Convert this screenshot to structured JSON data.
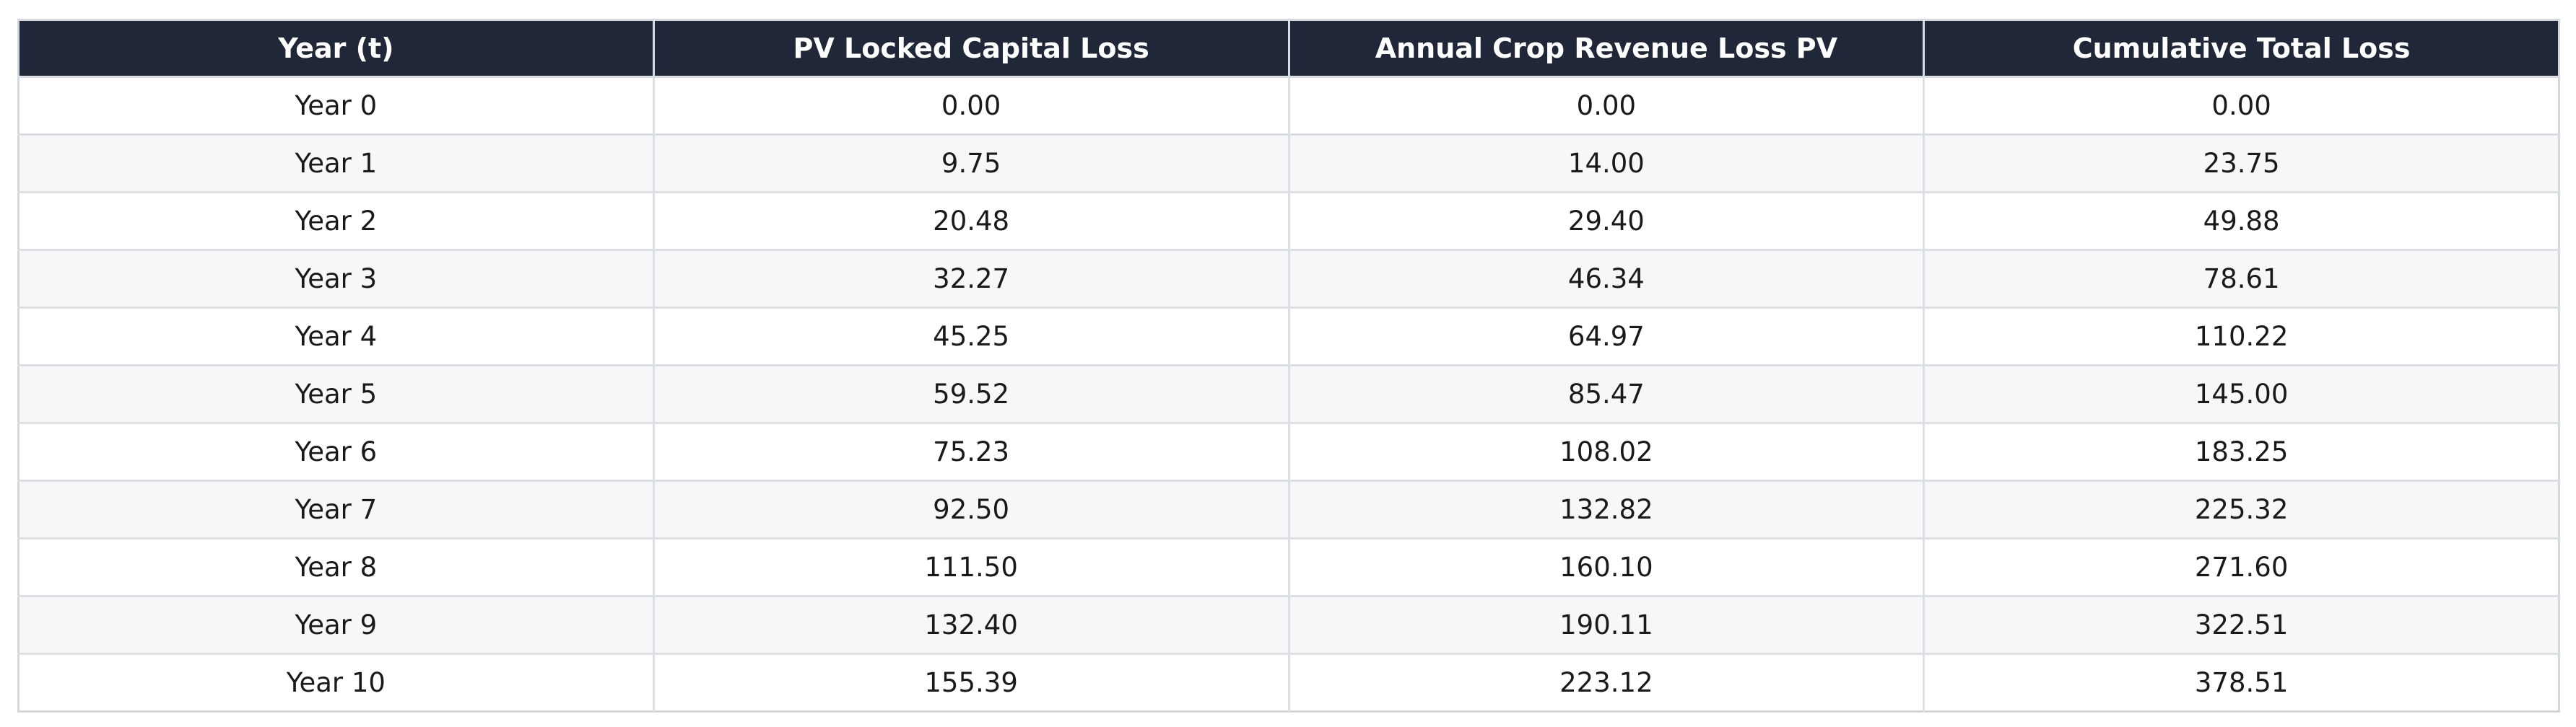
{
  "chart_data": {
    "type": "table",
    "columns": [
      "Year (t)",
      "PV Locked Capital Loss",
      "Annual Crop Revenue Loss PV",
      "Cumulative Total Loss"
    ],
    "rows": [
      [
        "Year 0",
        "0.00",
        "0.00",
        "0.00"
      ],
      [
        "Year 1",
        "9.75",
        "14.00",
        "23.75"
      ],
      [
        "Year 2",
        "20.48",
        "29.40",
        "49.88"
      ],
      [
        "Year 3",
        "32.27",
        "46.34",
        "78.61"
      ],
      [
        "Year 4",
        "45.25",
        "64.97",
        "110.22"
      ],
      [
        "Year 5",
        "59.52",
        "85.47",
        "145.00"
      ],
      [
        "Year 6",
        "75.23",
        "108.02",
        "183.25"
      ],
      [
        "Year 7",
        "92.50",
        "132.82",
        "225.32"
      ],
      [
        "Year 8",
        "111.50",
        "160.10",
        "271.60"
      ],
      [
        "Year 9",
        "132.40",
        "190.11",
        "322.51"
      ],
      [
        "Year 10",
        "155.39",
        "223.12",
        "378.51"
      ]
    ],
    "colors": {
      "header_background": "#1f2738",
      "header_text": "#ffffff",
      "row_alt_background": "#f6f7f8",
      "grid": "#dcdfe3"
    }
  }
}
